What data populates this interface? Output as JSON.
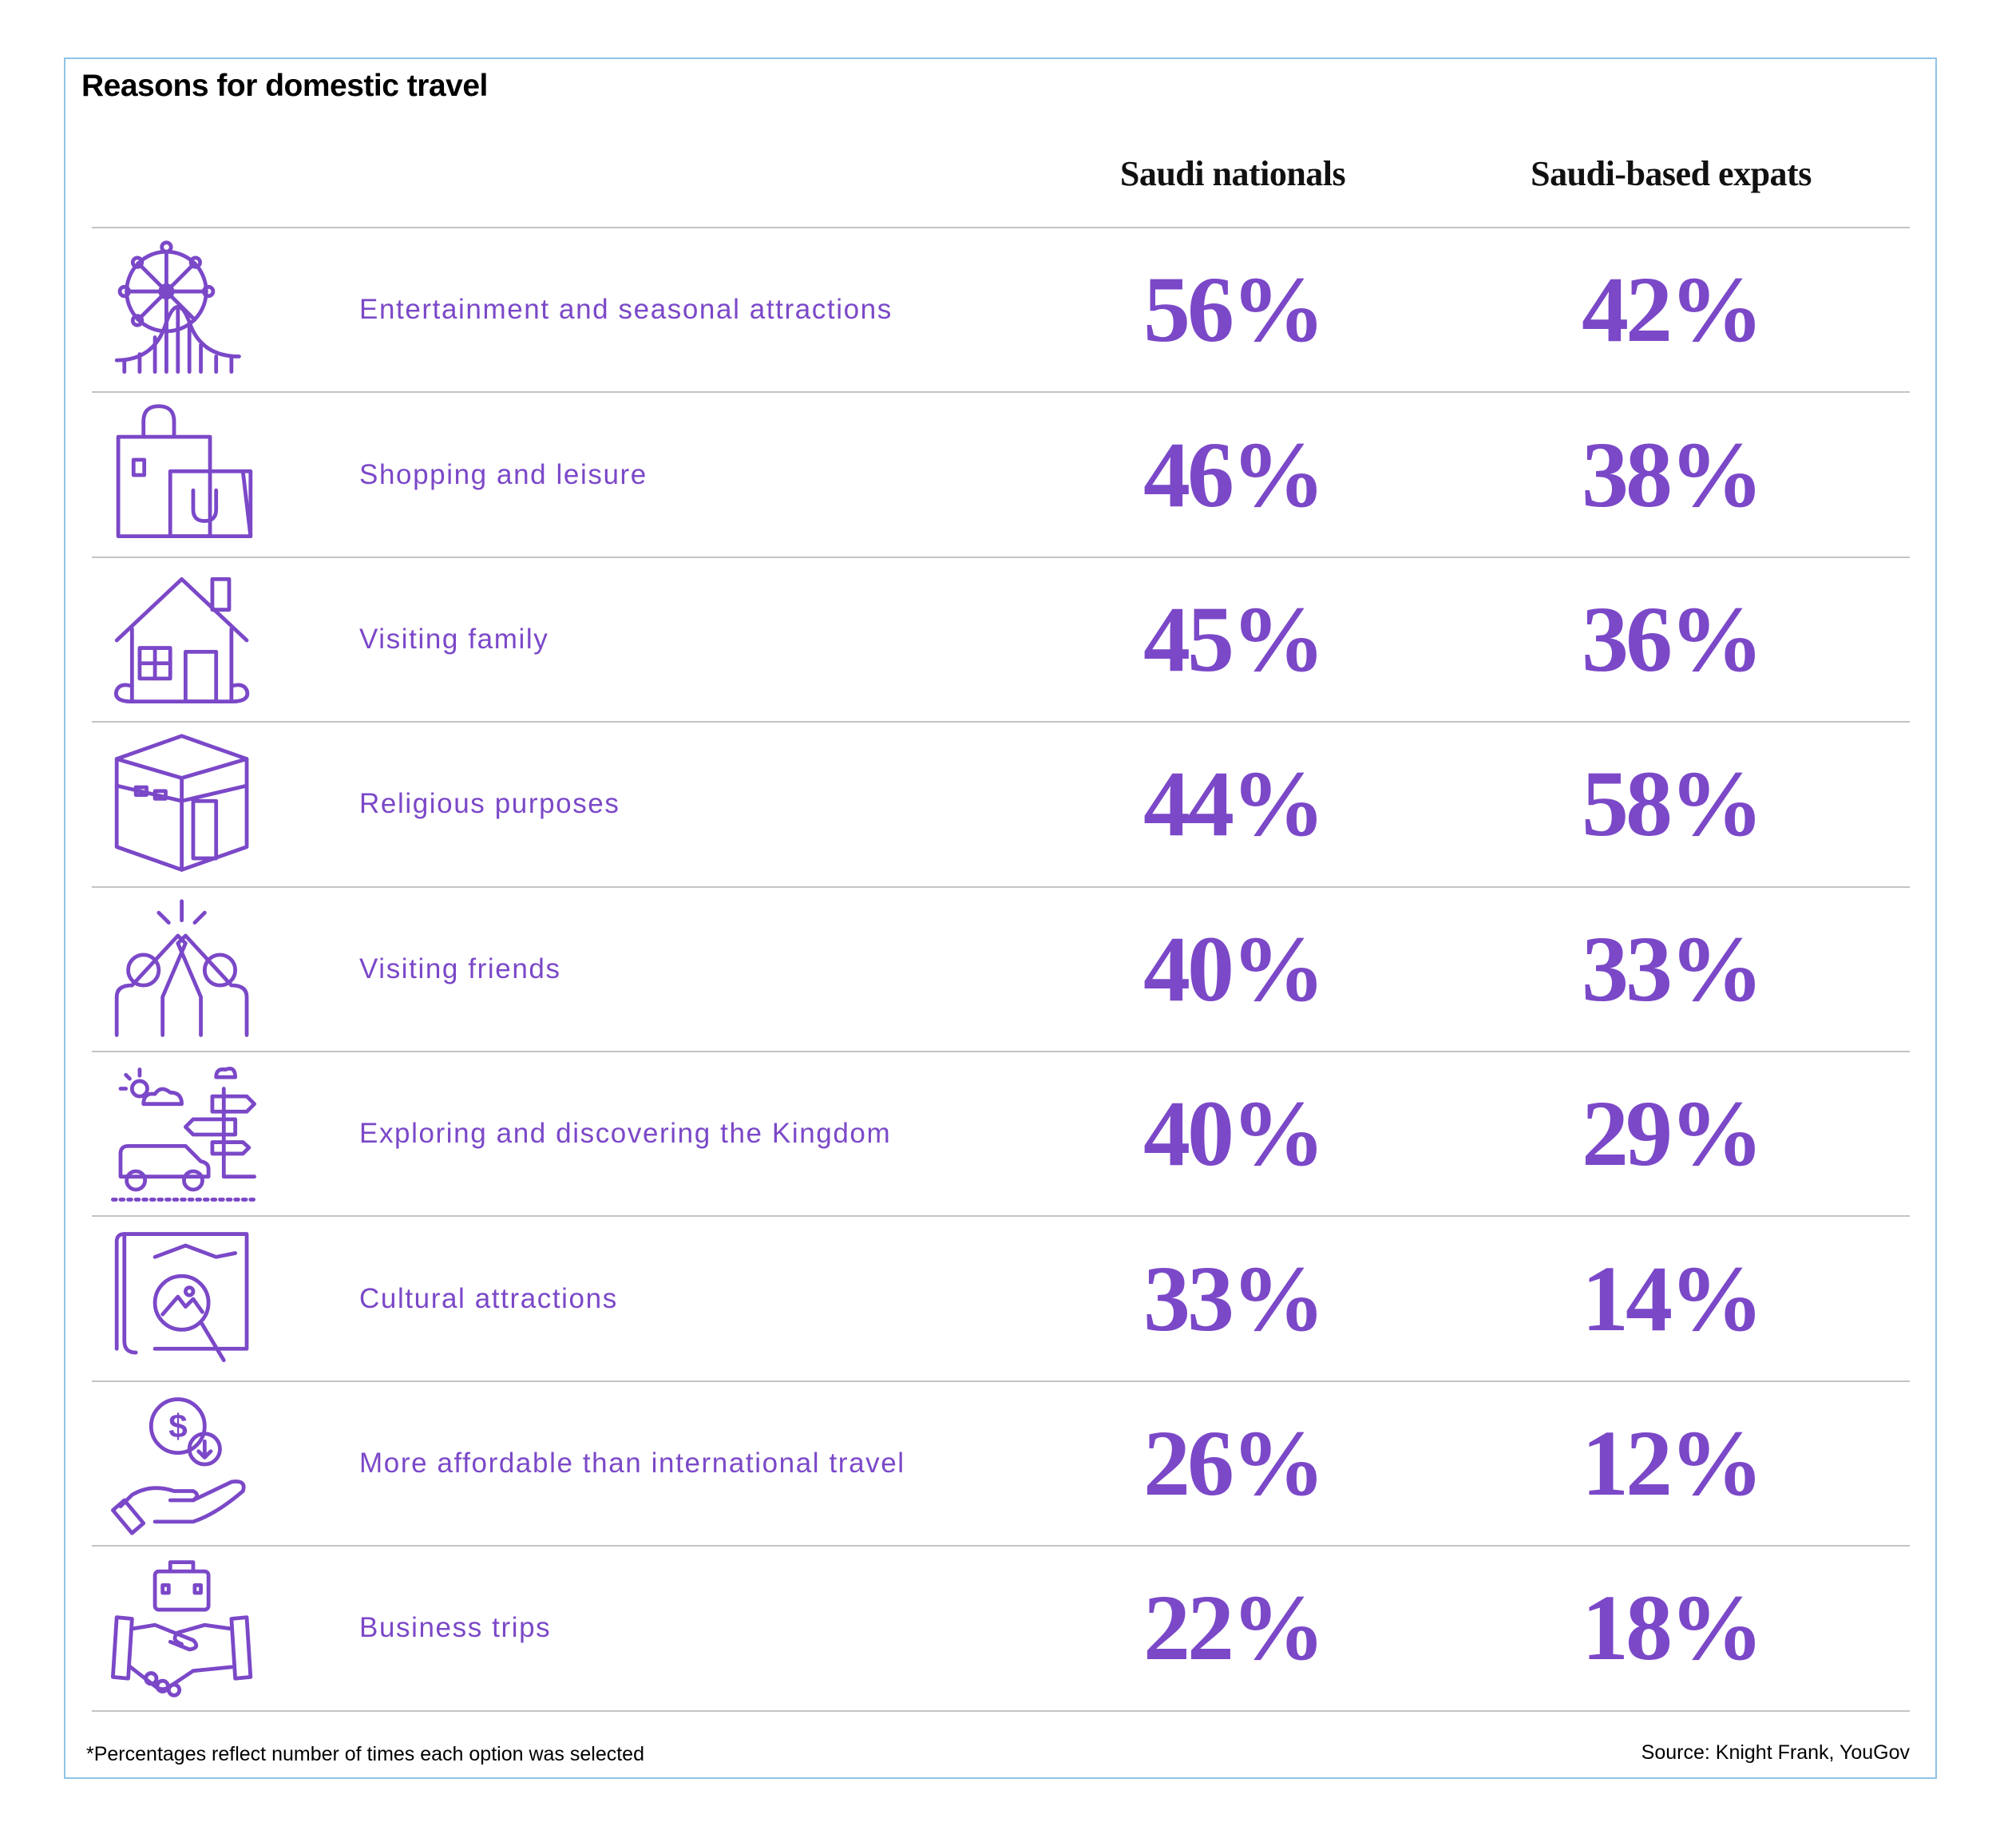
{
  "title": "Reasons for domestic travel",
  "columns": [
    "Saudi nationals",
    "Saudi-based expats"
  ],
  "accent_color": "#7b48c8",
  "rows": [
    {
      "icon": "ferris-wheel-icon",
      "label": "Entertainment and seasonal attractions",
      "saudi_nationals": "56%",
      "saudi_based_expats": "42%"
    },
    {
      "icon": "shopping-bags-icon",
      "label": "Shopping and leisure",
      "saudi_nationals": "46%",
      "saudi_based_expats": "38%"
    },
    {
      "icon": "house-icon",
      "label": "Visiting family",
      "saudi_nationals": "45%",
      "saudi_based_expats": "36%"
    },
    {
      "icon": "kaaba-icon",
      "label": "Religious purposes",
      "saudi_nationals": "44%",
      "saudi_based_expats": "58%"
    },
    {
      "icon": "high-five-icon",
      "label": "Visiting friends",
      "saudi_nationals": "40%",
      "saudi_based_expats": "33%"
    },
    {
      "icon": "road-trip-icon",
      "label": "Exploring and discovering the Kingdom",
      "saudi_nationals": "40%",
      "saudi_based_expats": "29%"
    },
    {
      "icon": "map-magnifier-icon",
      "label": "Cultural attractions",
      "saudi_nationals": "33%",
      "saudi_based_expats": "14%"
    },
    {
      "icon": "hand-money-icon",
      "label": "More affordable than international travel",
      "saudi_nationals": "26%",
      "saudi_based_expats": "12%"
    },
    {
      "icon": "handshake-briefcase-icon",
      "label": "Business trips",
      "saudi_nationals": "22%",
      "saudi_based_expats": "18%"
    }
  ],
  "footnote": "*Percentages reflect number of times each option was selected",
  "source": "Source: Knight Frank, YouGov"
}
